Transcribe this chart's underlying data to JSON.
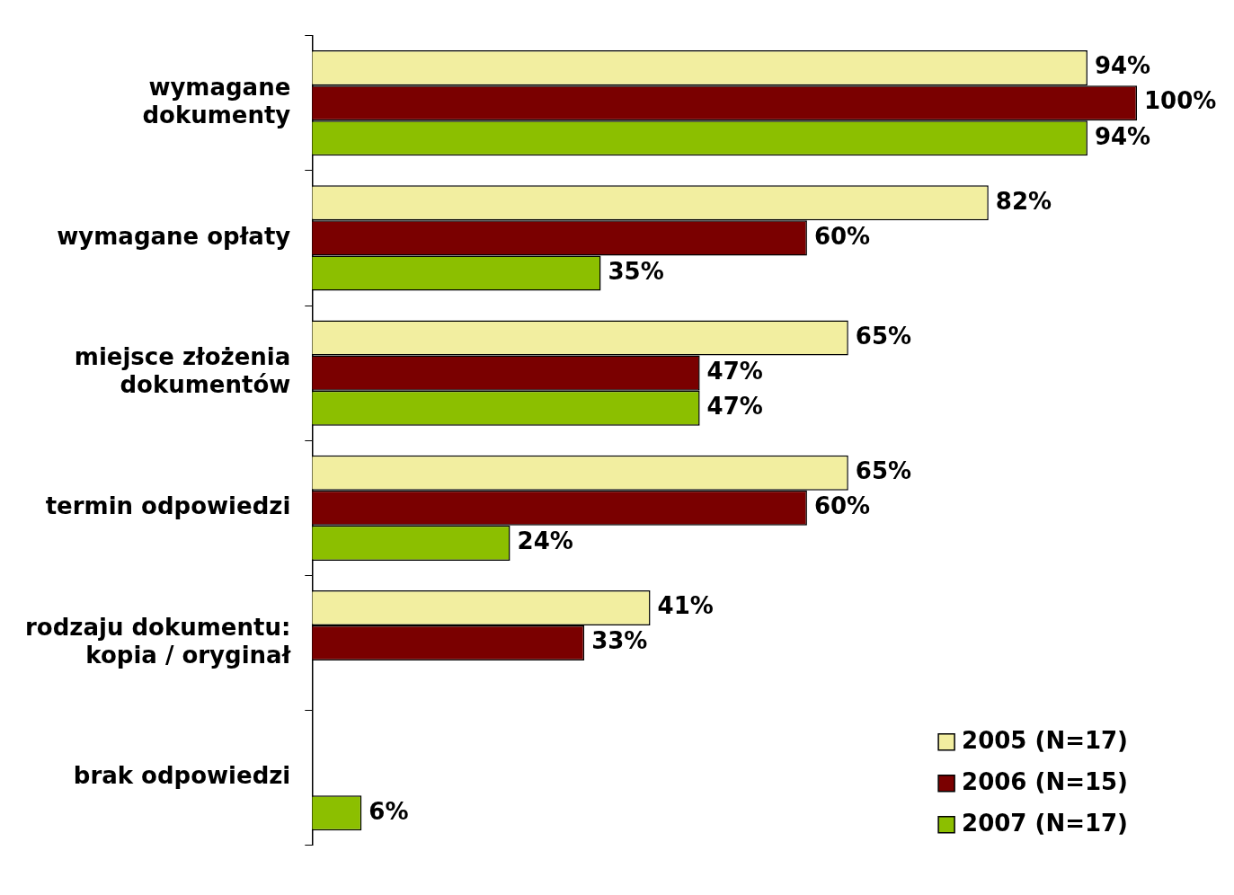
{
  "chart_data": {
    "type": "bar",
    "orientation": "horizontal",
    "categories": [
      "wymagane dokumenty",
      "wymagane opłaty",
      "miejsce złożenia dokumentów",
      "termin odpowiedzi",
      "rodzaju dokumentu: kopia / oryginał",
      "brak odpowiedzi"
    ],
    "series": [
      {
        "name": "2005 (N=17)",
        "color": "#f2eea0",
        "values": [
          94,
          82,
          65,
          65,
          41,
          null
        ],
        "value_labels": [
          "94%",
          "82%",
          "65%",
          "65%",
          "41%",
          null
        ]
      },
      {
        "name": "2006 (N=15)",
        "color": "#7a0000",
        "values": [
          100,
          60,
          47,
          60,
          33,
          null
        ],
        "value_labels": [
          "100%",
          "60%",
          "47%",
          "60%",
          "33%",
          null
        ]
      },
      {
        "name": "2007 (N=17)",
        "color": "#8cbf00",
        "values": [
          94,
          35,
          47,
          24,
          null,
          6
        ],
        "value_labels": [
          "94%",
          "35%",
          "47%",
          "24%",
          null,
          "6%"
        ]
      }
    ],
    "legend": "bottom right"
  }
}
